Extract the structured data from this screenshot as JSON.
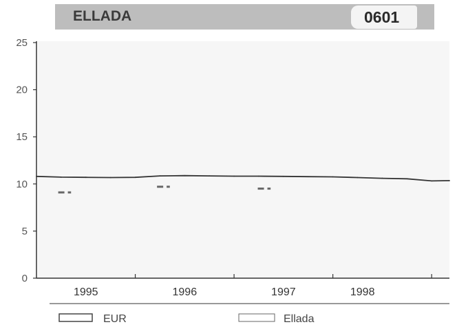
{
  "header": {
    "title": "ELLADA",
    "code": "0601"
  },
  "chart_data": {
    "type": "line",
    "title": "ELLADA",
    "xlabel": "",
    "ylabel": "",
    "ylim": [
      0,
      25
    ],
    "yticks": [
      0,
      5,
      10,
      15,
      20,
      25
    ],
    "xlim": [
      1994.5,
      1998.68
    ],
    "xticks": [
      "1995",
      "1996",
      "1997",
      "1998"
    ],
    "xtick_values": [
      1995.0,
      1996.0,
      1997.0,
      1997.8
    ],
    "grid": false,
    "legend": "bottom",
    "series": [
      {
        "name": "EUR",
        "style": "solid",
        "color": "#333333",
        "points": [
          [
            1994.5,
            10.8
          ],
          [
            1994.75,
            10.72
          ],
          [
            1995.0,
            10.7
          ],
          [
            1995.25,
            10.68
          ],
          [
            1995.5,
            10.7
          ],
          [
            1995.75,
            10.85
          ],
          [
            1996.0,
            10.88
          ],
          [
            1996.25,
            10.85
          ],
          [
            1996.5,
            10.82
          ],
          [
            1996.75,
            10.82
          ],
          [
            1997.0,
            10.8
          ],
          [
            1997.25,
            10.77
          ],
          [
            1997.5,
            10.75
          ],
          [
            1997.75,
            10.68
          ],
          [
            1998.0,
            10.6
          ],
          [
            1998.25,
            10.55
          ],
          [
            1998.5,
            10.32
          ],
          [
            1998.68,
            10.35
          ]
        ]
      },
      {
        "name": "Ellada",
        "style": "dashed",
        "color": "#666666",
        "segments": [
          [
            [
              1994.72,
              9.1
            ],
            [
              1994.85,
              9.1
            ]
          ],
          [
            [
              1995.72,
              9.7
            ],
            [
              1995.85,
              9.7
            ]
          ],
          [
            [
              1996.74,
              9.5
            ],
            [
              1996.87,
              9.5
            ]
          ]
        ]
      }
    ]
  }
}
